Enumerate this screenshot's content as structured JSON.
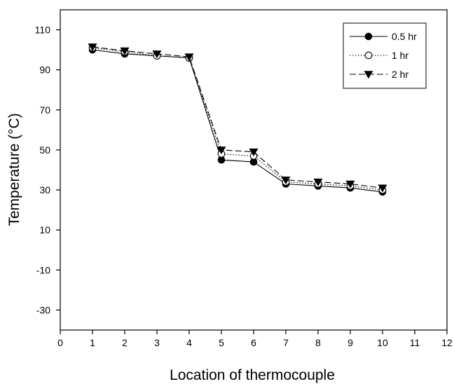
{
  "chart_data": {
    "type": "line",
    "title": "",
    "xlabel": "Location of thermocouple",
    "ylabel": "Temperature (°C)",
    "xlim": [
      0,
      12
    ],
    "ylim": [
      -40,
      120
    ],
    "xticks": [
      0,
      1,
      2,
      3,
      4,
      5,
      6,
      7,
      8,
      9,
      10,
      11,
      12
    ],
    "xtick_labels": [
      "0",
      "1",
      "2",
      "3",
      "4",
      "5",
      "6",
      "7",
      "8",
      "9",
      "10",
      "11",
      "12"
    ],
    "yticks": [
      -30,
      -10,
      10,
      30,
      50,
      70,
      90,
      110
    ],
    "ytick_labels": [
      "-30",
      "-10",
      "10",
      "30",
      "50",
      "70",
      "90",
      "110"
    ],
    "grid": false,
    "legend_position": "top-right",
    "x": [
      1,
      2,
      3,
      4,
      5,
      6,
      7,
      8,
      9,
      10
    ],
    "series": [
      {
        "name": "0.5 hr",
        "marker": "filled-circle",
        "line": "solid",
        "values": [
          100,
          98,
          97,
          96,
          45,
          44,
          33,
          32,
          31,
          29
        ]
      },
      {
        "name": "1 hr",
        "marker": "open-circle",
        "line": "dotted",
        "values": [
          101,
          99,
          97,
          96,
          48,
          47,
          34,
          33,
          32,
          30
        ]
      },
      {
        "name": "2 hr",
        "marker": "filled-triangle-down",
        "line": "dashed",
        "values": [
          101.5,
          99.5,
          98,
          96.5,
          50,
          49,
          35,
          34,
          33,
          31
        ]
      }
    ]
  }
}
